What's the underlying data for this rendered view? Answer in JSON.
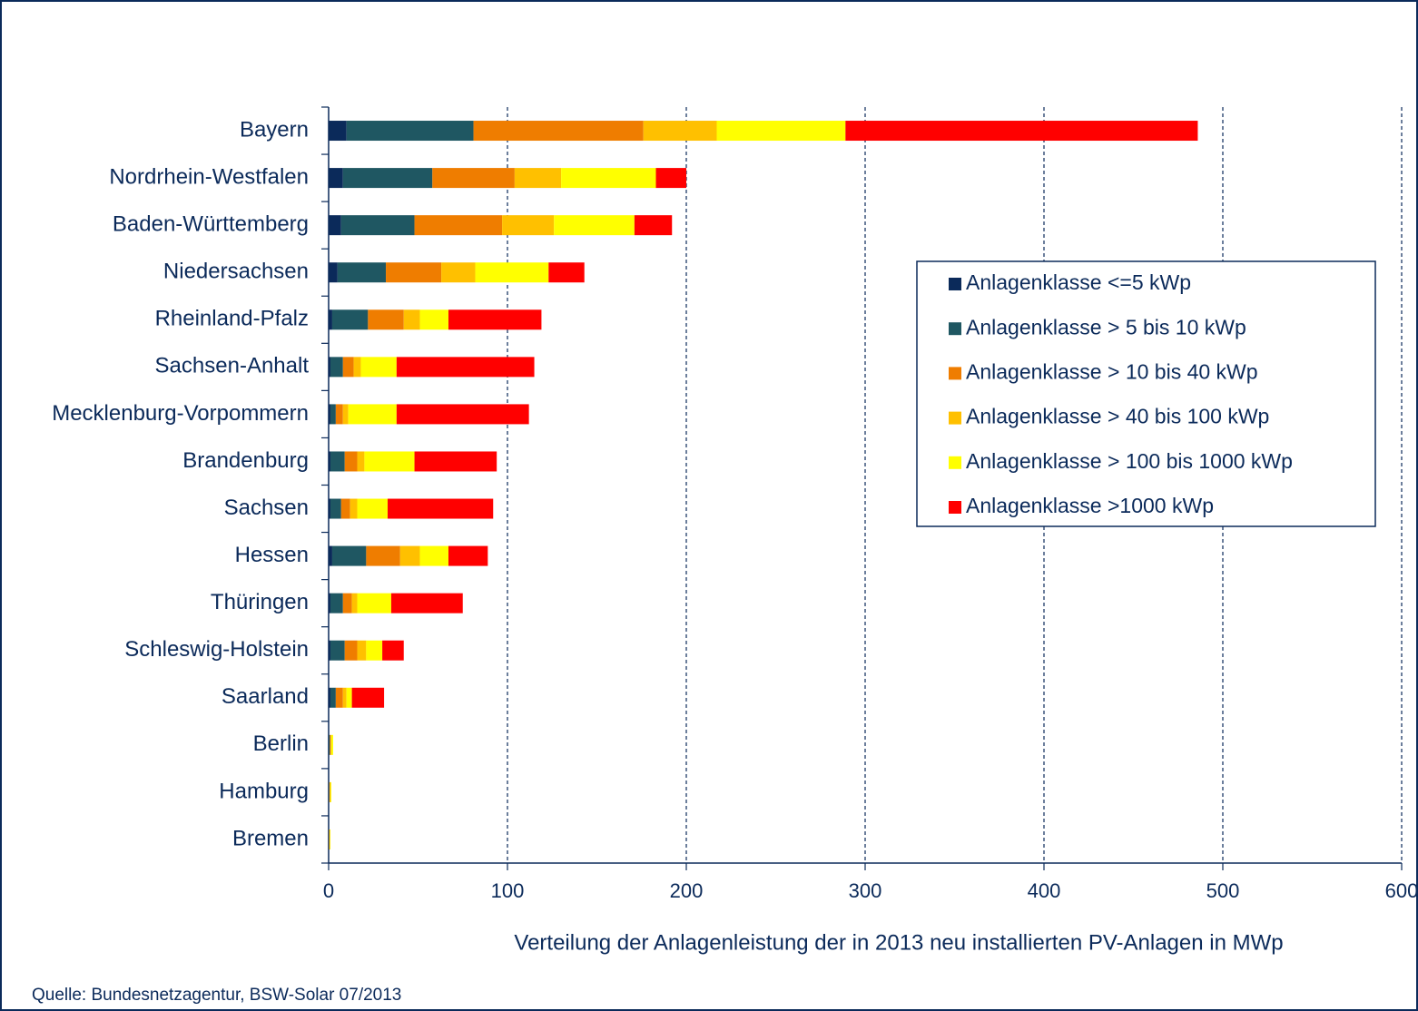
{
  "chart_data": {
    "type": "stacked_barh",
    "x_label": "Verteilung der Anlagenleistung der in 2013 neu installierten PV-Anlagen in MWp",
    "source": "Quelle: Bundesnetzagentur, BSW-Solar 07/2013",
    "categories": [
      "Bayern",
      "Nordrhein-Westfalen",
      "Baden-Württemberg",
      "Niedersachsen",
      "Rheinland-Pfalz",
      "Sachsen-Anhalt",
      "Mecklenburg-Vorpommern",
      "Brandenburg",
      "Sachsen",
      "Hessen",
      "Thüringen",
      "Schleswig-Holstein",
      "Saarland",
      "Berlin",
      "Hamburg",
      "Bremen"
    ],
    "series": [
      {
        "name": "Anlagenklasse <=5 kWp",
        "color": "#0b2a5a",
        "values": [
          10,
          8,
          7,
          5,
          2,
          1,
          1,
          1,
          1,
          2,
          1,
          1,
          1,
          0.2,
          0.1,
          0.1
        ]
      },
      {
        "name": "Anlagenklasse > 5 bis 10 kWp",
        "color": "#1f5762",
        "values": [
          71,
          50,
          41,
          27,
          20,
          7,
          3,
          8,
          6,
          19,
          7,
          8,
          3,
          0.5,
          0.3,
          0.2
        ]
      },
      {
        "name": "Anlagenklasse > 10 bis 40 kWp",
        "color": "#ef7d00",
        "values": [
          95,
          46,
          49,
          31,
          20,
          6,
          4,
          7,
          5,
          19,
          5,
          7,
          4,
          0.5,
          0.3,
          0.2
        ]
      },
      {
        "name": "Anlagenklasse > 40 bis 100 kWp",
        "color": "#ffc000",
        "values": [
          41,
          26,
          29,
          19,
          9,
          4,
          3,
          4,
          4,
          11,
          3,
          5,
          2,
          0.3,
          0.3,
          0.2
        ]
      },
      {
        "name": "Anlagenklasse > 100 bis 1000 kWp",
        "color": "#ffff00",
        "values": [
          72,
          53,
          45,
          41,
          16,
          20,
          27,
          28,
          17,
          16,
          19,
          9,
          3,
          1,
          0.5,
          0.3
        ]
      },
      {
        "name": "Anlagenklasse >1000 kWp",
        "color": "#ff0000",
        "values": [
          197,
          17,
          21,
          20,
          52,
          77,
          74,
          46,
          59,
          22,
          40,
          12,
          18,
          0,
          0,
          0
        ]
      }
    ],
    "xlim": [
      0,
      600
    ],
    "xticks": [
      0,
      100,
      200,
      300,
      400,
      500,
      600
    ],
    "grid": true,
    "legend": "right"
  }
}
